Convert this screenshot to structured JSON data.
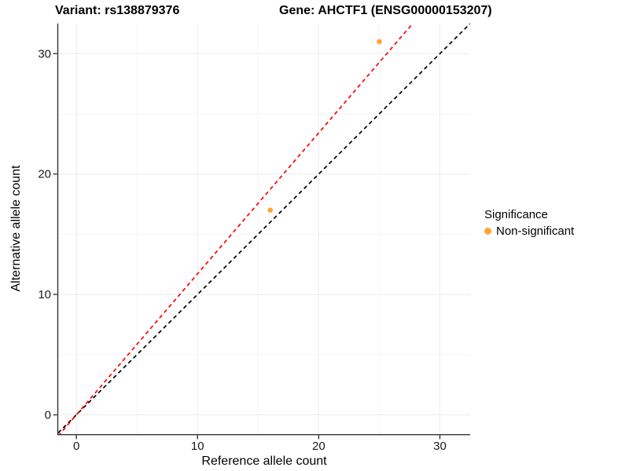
{
  "chart_data": {
    "type": "scatter",
    "titles": {
      "left": "Variant: rs138879376",
      "right": "Gene: AHCTF1 (ENSG00000153207)"
    },
    "xlabel": "Reference allele count",
    "ylabel": "Alternative allele count",
    "xlim": [
      -1.5,
      32.5
    ],
    "ylim": [
      -1.6,
      32.5
    ],
    "xticks": [
      0,
      10,
      20,
      30
    ],
    "yticks": [
      0,
      10,
      20,
      30
    ],
    "minor_ticks": [
      5,
      15,
      25
    ],
    "grid": "major and minor gridlines, white background",
    "legend_position": "right",
    "points": [
      {
        "x": 16,
        "y": 17,
        "series": "Non-significant"
      },
      {
        "x": 25,
        "y": 31,
        "series": "Non-significant"
      }
    ],
    "lines": [
      {
        "name": "identity-line",
        "slope": 1.0,
        "intercept": 0,
        "color": "#000000",
        "style": "dashed"
      },
      {
        "name": "allelic-ratio-line",
        "slope": 1.171,
        "intercept": 0,
        "color": "#FF0000",
        "style": "dashed"
      }
    ],
    "legend": {
      "title": "Significance",
      "items": [
        {
          "label": "Non-significant",
          "color": "#FFA438"
        }
      ]
    },
    "colors": {
      "point": "#FFA438",
      "grid_major": "#EBEBEB",
      "grid_minor": "#F5F5F5",
      "axis": "#333333",
      "tick_text": "#1A1A1A"
    }
  }
}
